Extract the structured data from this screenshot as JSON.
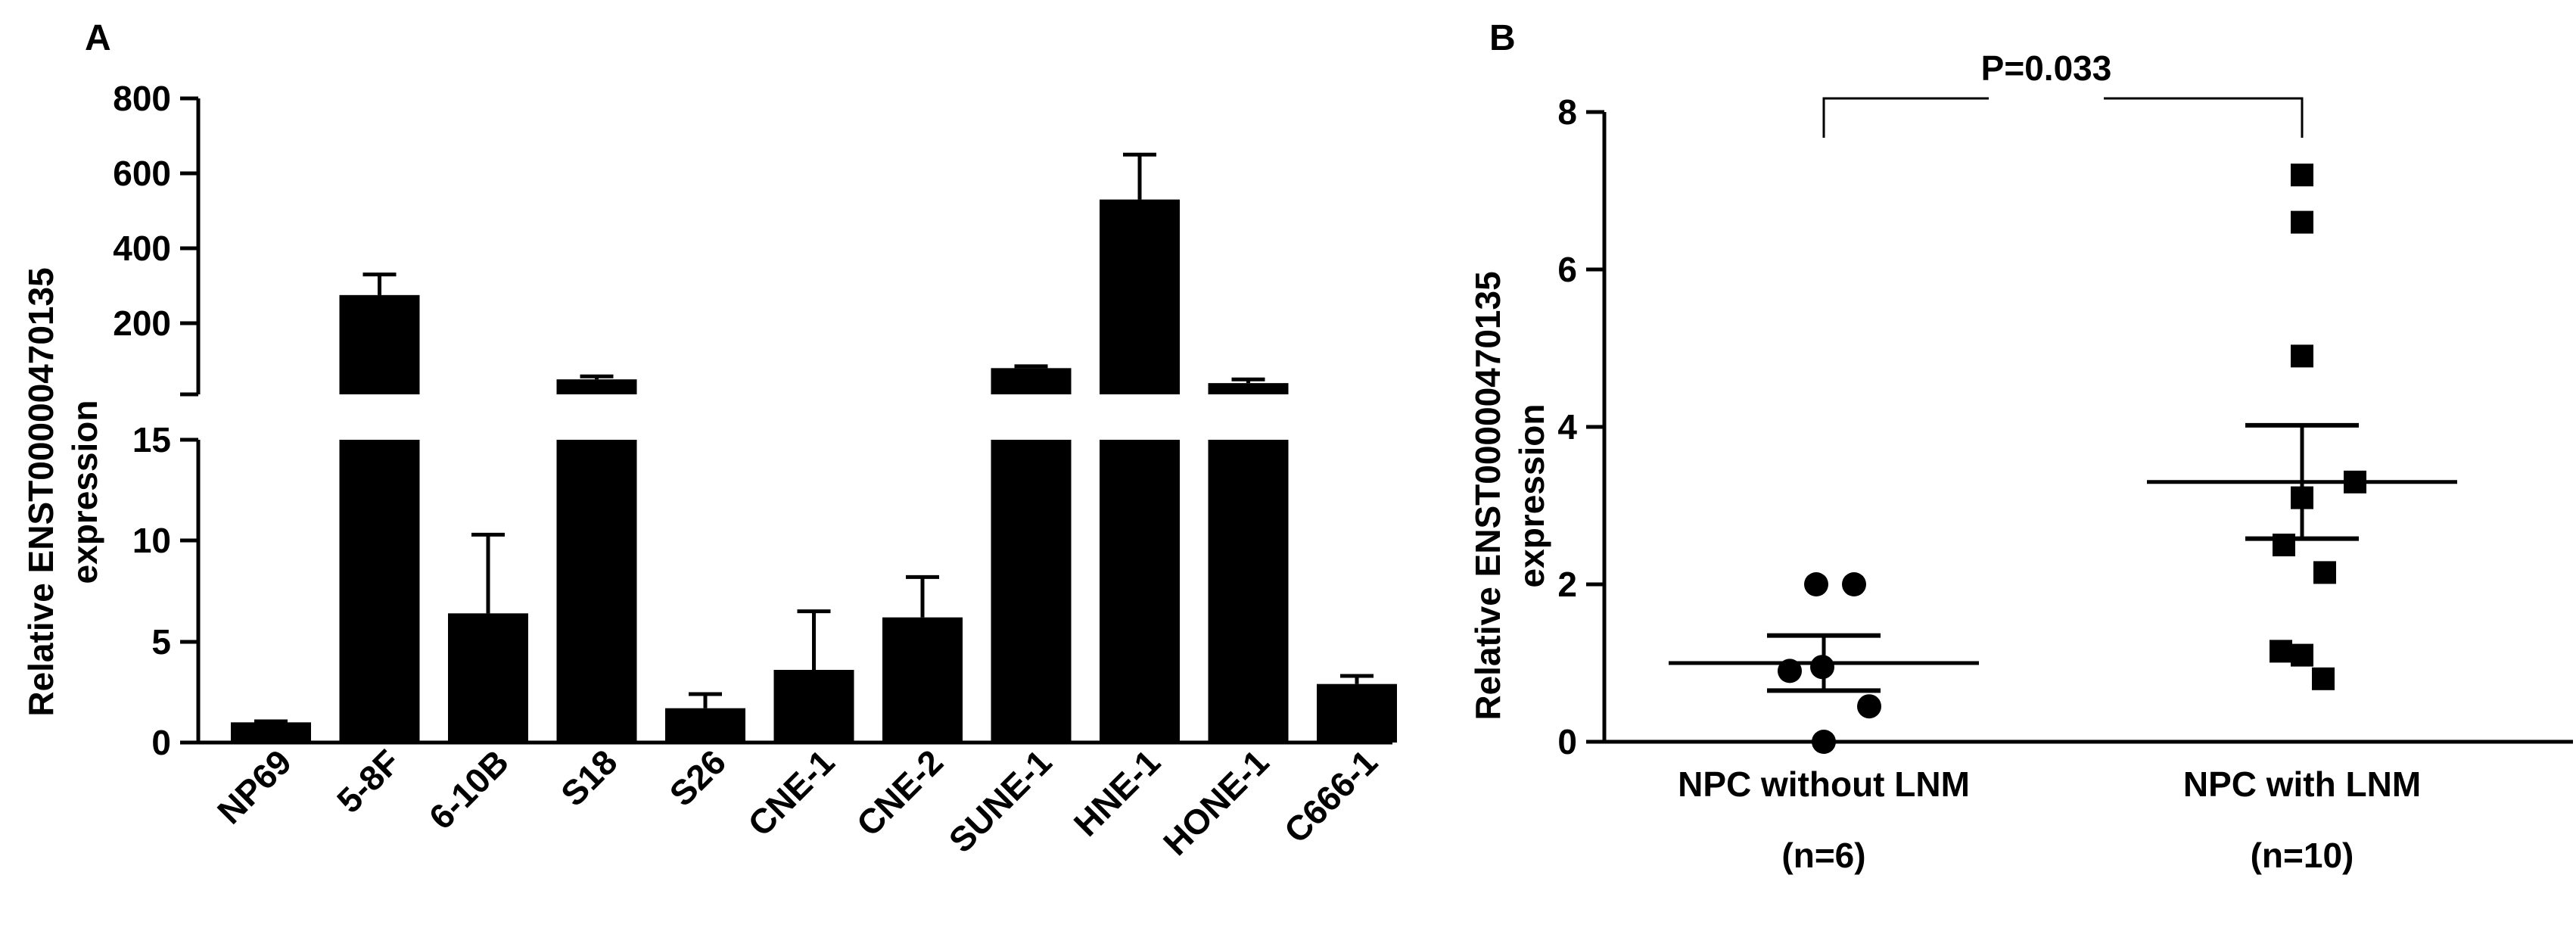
{
  "chart_data": [
    {
      "panel_label": "A",
      "type": "bar",
      "ylabel_line1": "Relative ENST00000470135",
      "ylabel_line2": "expression",
      "y_axis_break": true,
      "ylim_lower": [
        0,
        15
      ],
      "ylim_upper": [
        0,
        800
      ],
      "yticks_lower": [
        "0",
        "5",
        "10",
        "15"
      ],
      "yticks_upper": [
        "200",
        "400",
        "600",
        "800"
      ],
      "categories": [
        "NP69",
        "5-8F",
        "6-10B",
        "S18",
        "S26",
        "CNE-1",
        "CNE-2",
        "SUNE-1",
        "HNE-1",
        "HONE-1",
        "C666-1"
      ],
      "values": [
        1.0,
        265,
        6.4,
        40,
        1.7,
        3.6,
        6.2,
        70,
        520,
        30,
        2.9
      ],
      "errors": [
        0.05,
        55,
        3.9,
        8,
        0.7,
        2.9,
        2.0,
        5,
        120,
        10,
        0.4
      ],
      "bar_color": "#000000"
    },
    {
      "panel_label": "B",
      "type": "scatter",
      "ylabel_line1": "Relative ENST00000470135",
      "ylabel_line2": "expression",
      "ylim": [
        0,
        8
      ],
      "yticks": [
        "0",
        "2",
        "4",
        "6",
        "8"
      ],
      "significance": "P=0.033",
      "groups": [
        {
          "name": "NPC without LNM",
          "n_label": "(n=6)",
          "marker": "circle",
          "values": [
            2.0,
            2.0,
            0.95,
            0.9,
            0.45,
            0.0
          ],
          "mean": 1.0,
          "sem": 0.35
        },
        {
          "name": "NPC with LNM",
          "n_label": "(n=10)",
          "marker": "square",
          "values": [
            7.2,
            6.6,
            4.9,
            3.3,
            3.1,
            2.5,
            2.15,
            1.15,
            1.1,
            0.8
          ],
          "mean": 3.3,
          "sem": 0.72
        }
      ]
    }
  ]
}
